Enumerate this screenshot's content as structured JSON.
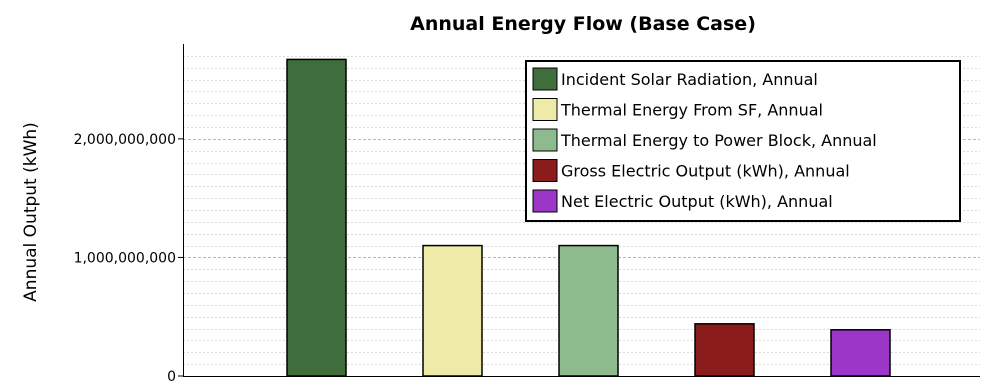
{
  "chart_data": {
    "type": "bar",
    "title": "Annual Energy Flow (Base Case)",
    "xlabel": "",
    "ylabel": "Annual Output (kWh)",
    "ylim": [
      0,
      2800000000
    ],
    "yticks": [
      0,
      1000000000,
      2000000000
    ],
    "ytick_labels": [
      "0",
      "1,000,000,000",
      "2,000,000,000"
    ],
    "grid": true,
    "legend_position": "top-right",
    "series": [
      {
        "name": "Incident Solar Radiation, Annual",
        "value": 2670000000,
        "color": "#3f6e3c"
      },
      {
        "name": "Thermal Energy From SF, Annual",
        "value": 1100000000,
        "color": "#eeeba9"
      },
      {
        "name": "Thermal Energy to Power Block, Annual",
        "value": 1100000000,
        "color": "#8dbb8d"
      },
      {
        "name": "Gross Electric Output (kWh), Annual",
        "value": 440000000,
        "color": "#8b1c1c"
      },
      {
        "name": "Net Electric Output (kWh), Annual",
        "value": 390000000,
        "color": "#9c36c8"
      }
    ]
  }
}
